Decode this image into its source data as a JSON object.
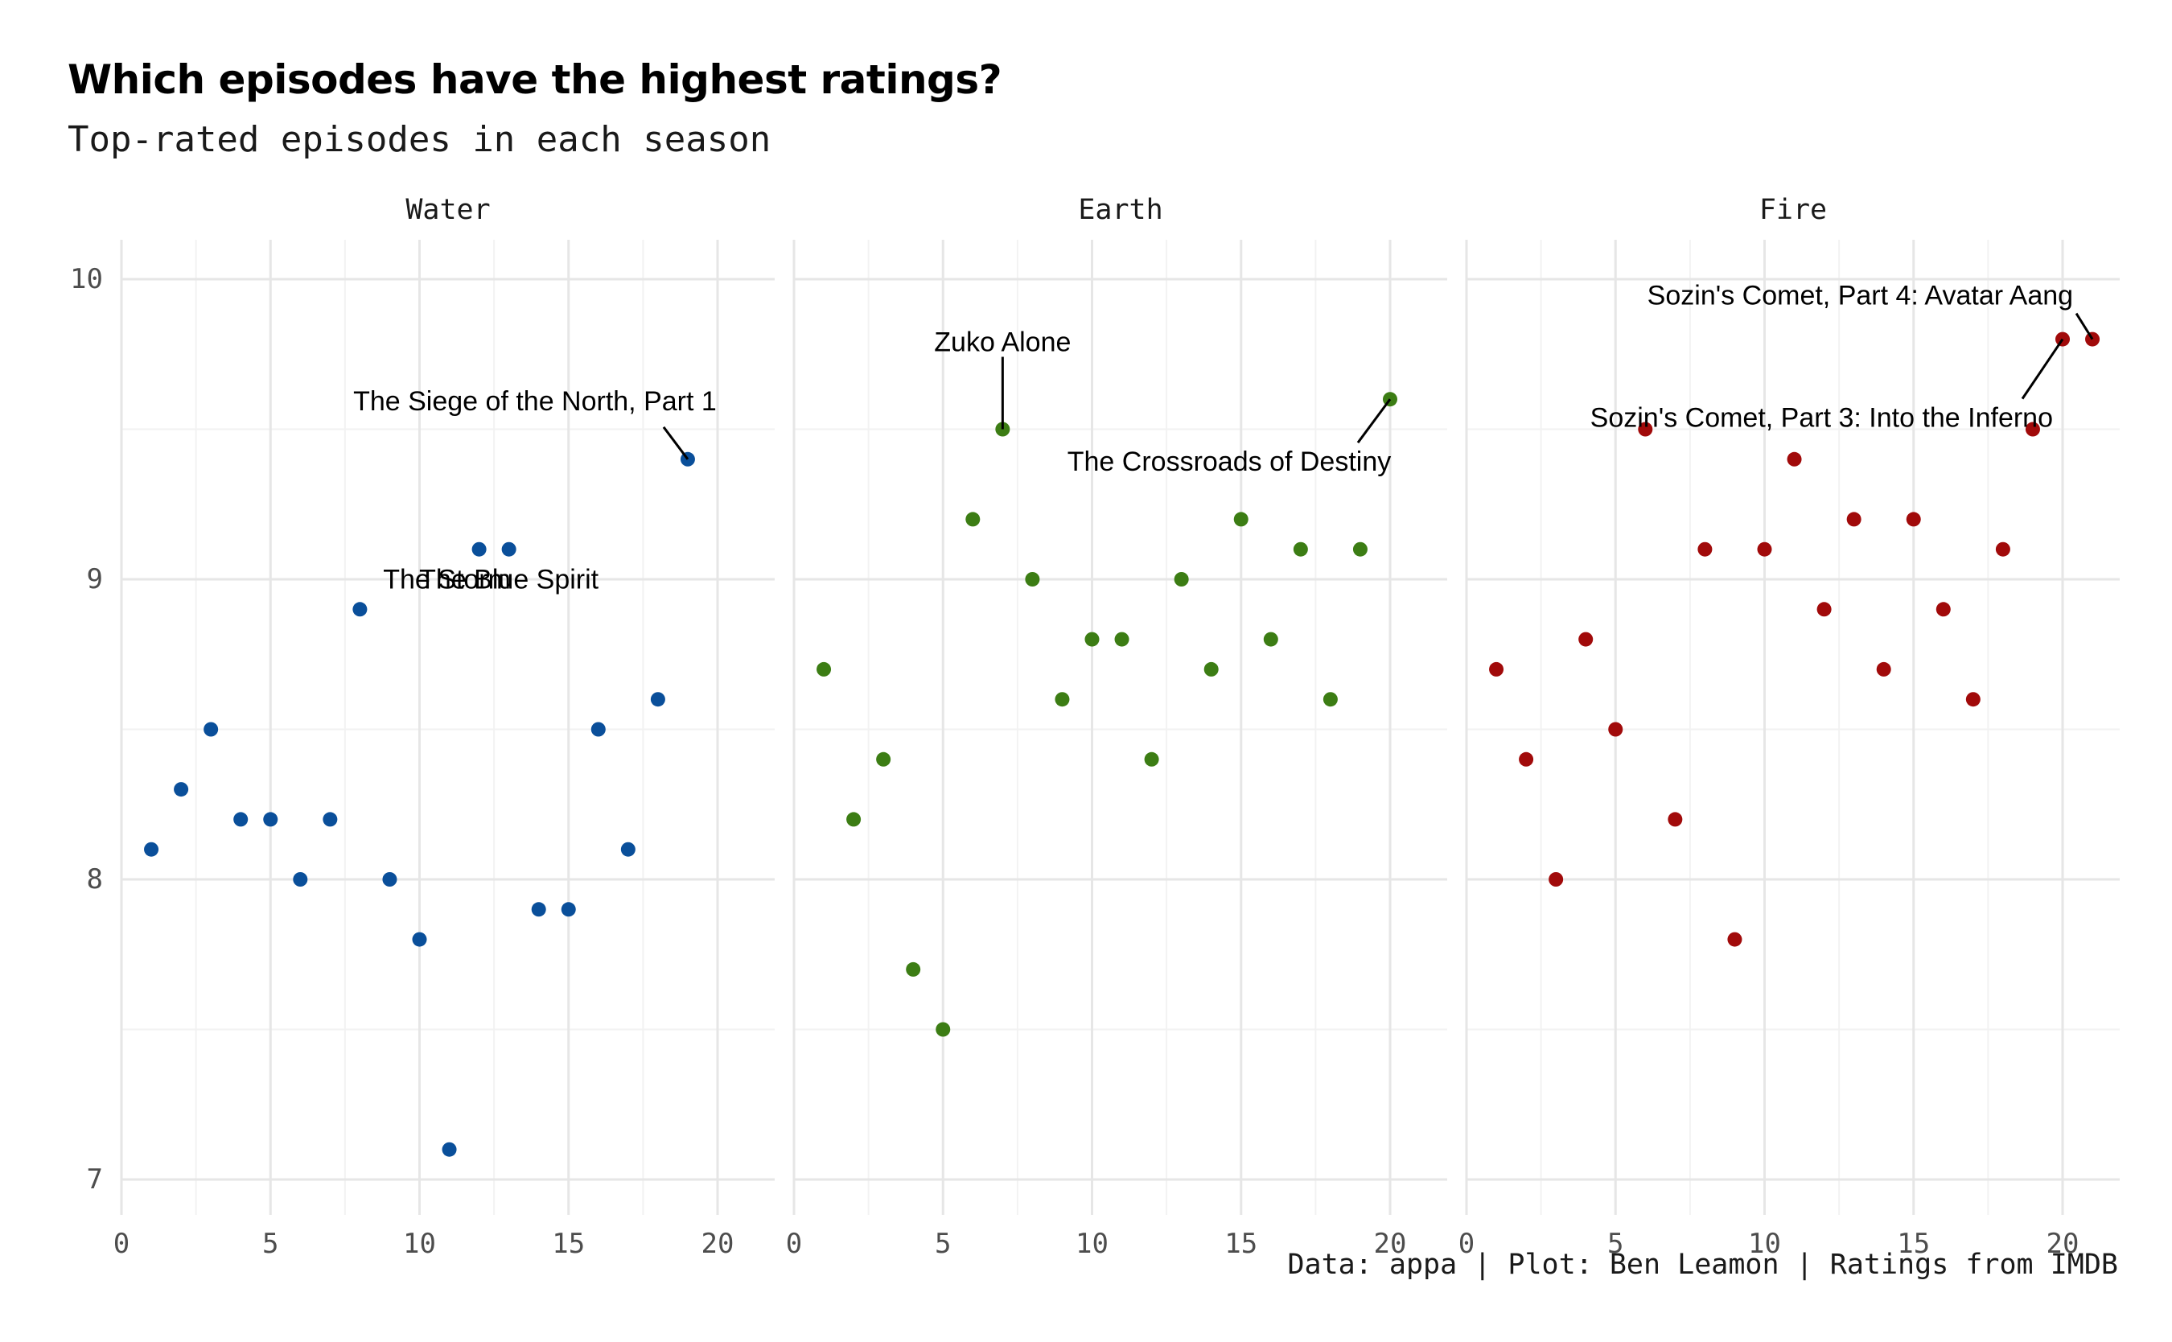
{
  "title": "Which episodes have the highest ratings?",
  "subtitle": "Top-rated episodes in each season",
  "caption": "Data: appa | Plot: Ben Leamon | Ratings from IMDB",
  "chart_data": {
    "type": "scatter",
    "xlim": [
      0,
      22
    ],
    "ylim": [
      7,
      10
    ],
    "x_ticks": [
      0,
      5,
      10,
      15,
      20
    ],
    "y_ticks": [
      7,
      8,
      9,
      10
    ],
    "grid": true,
    "panels": [
      {
        "name": "Water",
        "color": "#0a4f9a",
        "x": [
          1,
          2,
          3,
          4,
          5,
          6,
          7,
          8,
          9,
          10,
          11,
          12,
          13,
          14,
          15,
          16,
          17,
          18,
          19
        ],
        "y": [
          8.1,
          8.3,
          8.5,
          8.2,
          8.2,
          8.0,
          8.2,
          8.9,
          8.0,
          7.8,
          7.1,
          9.1,
          9.1,
          7.9,
          7.9,
          8.5,
          8.1,
          8.6,
          9.4
        ],
        "labels": [
          {
            "text": "The Siege of the North, Part 1",
            "x": 19,
            "y": 9.4
          },
          {
            "text": "The Storm",
            "x": 12,
            "y": 9.1
          },
          {
            "text": "The Blue Spirit",
            "x": 13,
            "y": 9.1
          }
        ]
      },
      {
        "name": "Earth",
        "color": "#3c7d14",
        "x": [
          1,
          2,
          3,
          4,
          5,
          6,
          7,
          8,
          9,
          10,
          11,
          12,
          13,
          14,
          15,
          16,
          17,
          18,
          19,
          20
        ],
        "y": [
          8.7,
          8.2,
          8.4,
          7.7,
          7.5,
          9.2,
          9.5,
          9.0,
          8.6,
          8.8,
          8.8,
          8.4,
          9.0,
          8.7,
          9.2,
          8.8,
          9.1,
          8.6,
          9.1,
          9.6
        ],
        "labels": [
          {
            "text": "Zuko Alone",
            "x": 7,
            "y": 9.5
          },
          {
            "text": "The Crossroads of Destiny",
            "x": 20,
            "y": 9.6
          }
        ]
      },
      {
        "name": "Fire",
        "color": "#a10a0a",
        "x": [
          1,
          2,
          3,
          4,
          5,
          6,
          7,
          8,
          9,
          10,
          11,
          12,
          13,
          14,
          15,
          16,
          17,
          18,
          19,
          20,
          21
        ],
        "y": [
          8.7,
          8.4,
          8.0,
          8.8,
          8.5,
          9.5,
          8.2,
          9.1,
          7.8,
          9.1,
          9.4,
          8.9,
          9.2,
          8.7,
          9.2,
          8.9,
          8.6,
          9.1,
          9.5,
          9.8,
          9.8
        ],
        "labels": [
          {
            "text": "Sozin's Comet, Part 4: Avatar Aang",
            "x": 21,
            "y": 9.8
          },
          {
            "text": "Sozin's Comet, Part 3: Into the Inferno",
            "x": 20,
            "y": 9.8
          }
        ]
      }
    ]
  }
}
